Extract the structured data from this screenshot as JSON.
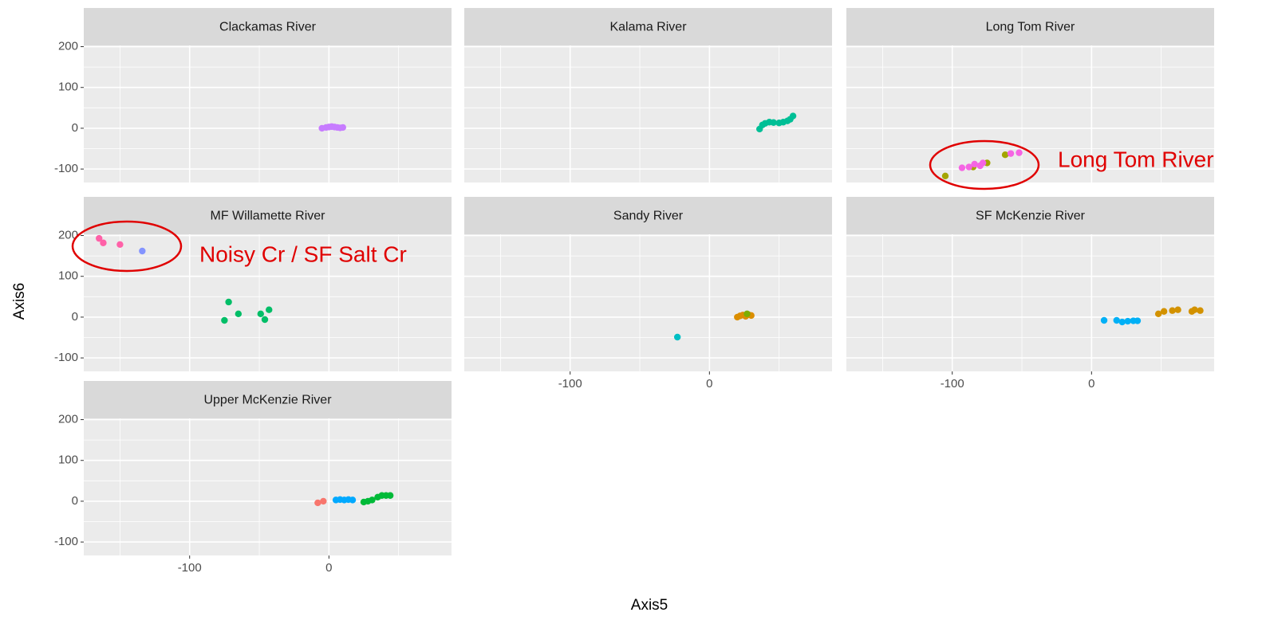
{
  "x_label": "Axis5",
  "y_label": "Axis6",
  "chart_data": [
    {
      "type": "scatter",
      "title": "Clackamas River",
      "xlim": [
        -176,
        88
      ],
      "ylim": [
        -133,
        203
      ],
      "xticks": [
        -100,
        0
      ],
      "yticks": [
        -100,
        0,
        100,
        200
      ],
      "minor_xticks": [
        -150,
        -50,
        50
      ],
      "minor_yticks": [
        -50,
        50,
        150
      ],
      "grid": true,
      "series": [
        {
          "color": "#C77CFF",
          "x": [
            -5,
            -2,
            0,
            2,
            4,
            6,
            8,
            10
          ],
          "values": [
            0,
            2,
            3,
            4,
            3,
            2,
            1,
            2
          ]
        }
      ]
    },
    {
      "type": "scatter",
      "title": "Kalama River",
      "xlim": [
        -176,
        88
      ],
      "ylim": [
        -133,
        203
      ],
      "xticks": [
        -100,
        0
      ],
      "yticks": [
        -100,
        0,
        100,
        200
      ],
      "minor_xticks": [
        -150,
        -50,
        50
      ],
      "minor_yticks": [
        -50,
        50,
        150
      ],
      "grid": true,
      "series": [
        {
          "color": "#00BF96",
          "x": [
            36,
            38,
            40,
            43,
            46,
            50,
            53,
            56,
            58,
            60
          ],
          "values": [
            -2,
            8,
            12,
            15,
            14,
            13,
            15,
            18,
            22,
            30
          ]
        }
      ]
    },
    {
      "type": "scatter",
      "title": "Long Tom River",
      "xlim": [
        -176,
        88
      ],
      "ylim": [
        -133,
        203
      ],
      "xticks": [
        -100,
        0
      ],
      "yticks": [
        -100,
        0,
        100,
        200
      ],
      "minor_xticks": [
        -150,
        -50,
        50
      ],
      "minor_yticks": [
        -50,
        50,
        150
      ],
      "grid": true,
      "annotations": [
        {
          "text": "Long Tom River"
        }
      ],
      "series": [
        {
          "color": "#A3A500",
          "x": [
            -105,
            -85,
            -75,
            -62
          ],
          "values": [
            -117,
            -95,
            -85,
            -65
          ]
        },
        {
          "color": "#F564E3",
          "x": [
            -93,
            -88,
            -84,
            -80,
            -78,
            -58,
            -52
          ],
          "values": [
            -97,
            -95,
            -88,
            -92,
            -85,
            -62,
            -60
          ]
        }
      ]
    },
    {
      "type": "scatter",
      "title": "MF Willamette River",
      "xlim": [
        -176,
        88
      ],
      "ylim": [
        -133,
        203
      ],
      "xticks": [
        -100,
        0
      ],
      "yticks": [
        -100,
        0,
        100,
        200
      ],
      "minor_xticks": [
        -150,
        -50,
        50
      ],
      "minor_yticks": [
        -50,
        50,
        150
      ],
      "grid": true,
      "annotations": [
        {
          "text": "Noisy Cr / SF Salt Cr"
        }
      ],
      "series": [
        {
          "color": "#FF61A8",
          "x": [
            -165,
            -162,
            -150
          ],
          "values": [
            193,
            182,
            178
          ]
        },
        {
          "color": "#8494FF",
          "x": [
            -134
          ],
          "values": [
            162
          ]
        },
        {
          "color": "#00BE67",
          "x": [
            -72,
            -75,
            -65,
            -49,
            -46,
            -43
          ],
          "values": [
            37,
            -8,
            8,
            8,
            -6,
            18
          ]
        }
      ]
    },
    {
      "type": "scatter",
      "title": "Sandy River",
      "xlim": [
        -176,
        88
      ],
      "ylim": [
        -133,
        203
      ],
      "xticks": [
        -100,
        0
      ],
      "yticks": [
        -100,
        0,
        100,
        200
      ],
      "minor_xticks": [
        -150,
        -50,
        50
      ],
      "minor_yticks": [
        -50,
        50,
        150
      ],
      "grid": true,
      "series": [
        {
          "color": "#00BFC4",
          "x": [
            -23
          ],
          "values": [
            -49
          ]
        },
        {
          "color": "#DB8E00",
          "x": [
            20,
            22,
            24,
            26,
            28,
            30
          ],
          "values": [
            0,
            3,
            5,
            2,
            6,
            4
          ]
        },
        {
          "color": "#7CAE00",
          "x": [
            27
          ],
          "values": [
            8
          ]
        }
      ]
    },
    {
      "type": "scatter",
      "title": "SF McKenzie River",
      "xlim": [
        -176,
        88
      ],
      "ylim": [
        -133,
        203
      ],
      "xticks": [
        -100,
        0
      ],
      "yticks": [
        -100,
        0,
        100,
        200
      ],
      "minor_xticks": [
        -150,
        -50,
        50
      ],
      "minor_yticks": [
        -50,
        50,
        150
      ],
      "grid": true,
      "series": [
        {
          "color": "#00B0F6",
          "x": [
            9,
            18,
            22,
            26,
            30,
            33
          ],
          "values": [
            -8,
            -8,
            -12,
            -10,
            -9,
            -9
          ]
        },
        {
          "color": "#D39200",
          "x": [
            48,
            52,
            58,
            62,
            72,
            74,
            78
          ],
          "values": [
            8,
            14,
            16,
            18,
            14,
            18,
            16
          ]
        }
      ]
    },
    {
      "type": "scatter",
      "title": "Upper McKenzie River",
      "xlim": [
        -176,
        88
      ],
      "ylim": [
        -133,
        203
      ],
      "xticks": [
        -100,
        0
      ],
      "yticks": [
        -100,
        0,
        100,
        200
      ],
      "minor_xticks": [
        -150,
        -50,
        50
      ],
      "minor_yticks": [
        -50,
        50,
        150
      ],
      "grid": true,
      "series": [
        {
          "color": "#F8766D",
          "x": [
            -8,
            -4
          ],
          "values": [
            -4,
            0
          ]
        },
        {
          "color": "#00A9FF",
          "x": [
            5,
            8,
            11,
            14,
            17
          ],
          "values": [
            3,
            4,
            3,
            4,
            3
          ]
        },
        {
          "color": "#00BA38",
          "x": [
            25,
            28,
            31,
            35,
            38,
            41,
            44
          ],
          "values": [
            -2,
            0,
            3,
            10,
            14,
            14,
            14
          ]
        }
      ]
    }
  ]
}
